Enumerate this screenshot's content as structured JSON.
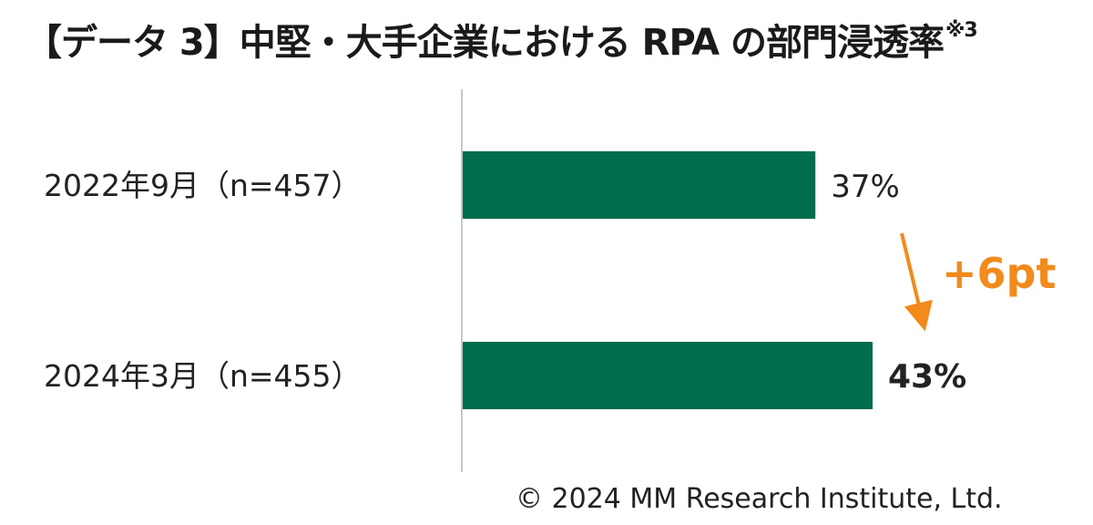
{
  "title": "【データ 3】中堅・大手企業における RPA の部門浸透率",
  "title_note": "※3",
  "colors": {
    "bar": "#006d4e",
    "accent": "#f28a1c",
    "axis": "#c8c8c8",
    "text": "#222222"
  },
  "chart_data": {
    "type": "bar",
    "orientation": "horizontal",
    "categories": [
      "2022年9月（n=457）",
      "2024年3月（n=455）"
    ],
    "values": [
      37,
      43
    ],
    "data_labels": [
      "37%",
      "43%"
    ],
    "unit": "%",
    "xlim": [
      0,
      50
    ],
    "grid": false,
    "annotation": {
      "text": "+6pt",
      "from": "2022年9月（n=457）",
      "to": "2024年3月（n=455）"
    }
  },
  "copyright": "© 2024 MM Research Institute, Ltd."
}
